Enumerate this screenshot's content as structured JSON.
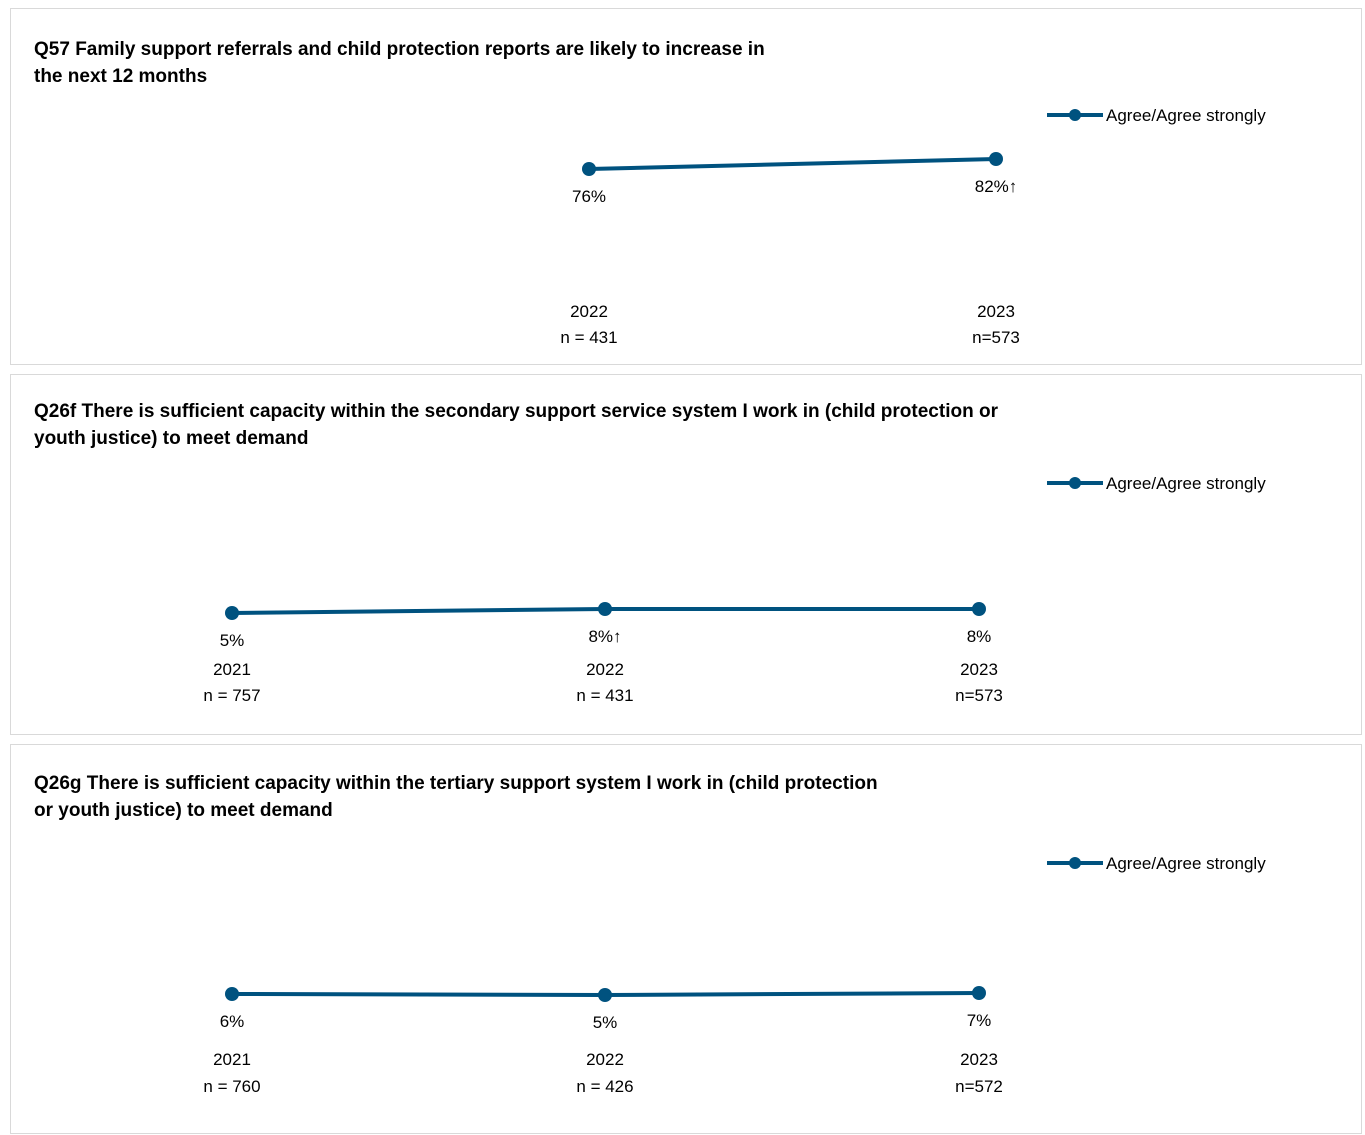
{
  "chart_data": [
    {
      "type": "line",
      "title": "Q57 Family support referrals and child protection reports are likely to increase in the next 12 months",
      "categories": [
        "2022",
        "2023"
      ],
      "sample_sizes": [
        "n = 431",
        "n=573"
      ],
      "series": [
        {
          "name": "Agree/Agree strongly",
          "values": [
            76,
            82
          ],
          "data_labels": [
            "76%",
            "82%↑"
          ]
        }
      ],
      "color": "#00527f",
      "ylim": [
        0,
        100
      ],
      "legend": "top-right",
      "grid": false
    },
    {
      "type": "line",
      "title": "Q26f There is sufficient capacity within the secondary support service system I work in (child protection or youth justice) to meet demand",
      "categories": [
        "2021",
        "2022",
        "2023"
      ],
      "sample_sizes": [
        "n = 757",
        "n = 431",
        "n=573"
      ],
      "series": [
        {
          "name": "Agree/Agree strongly",
          "values": [
            5,
            8,
            8
          ],
          "data_labels": [
            "5%",
            "8%↑",
            "8%"
          ]
        }
      ],
      "color": "#00527f",
      "ylim": [
        0,
        100
      ],
      "legend": "top-right",
      "grid": false
    },
    {
      "type": "line",
      "title": "Q26g There is sufficient capacity within the tertiary support system I work in (child protection or youth justice) to meet demand",
      "categories": [
        "2021",
        "2022",
        "2023"
      ],
      "sample_sizes": [
        "n = 760",
        "n = 426",
        "n=572"
      ],
      "series": [
        {
          "name": "Agree/Agree strongly",
          "values": [
            6,
            5,
            7
          ],
          "data_labels": [
            "6%",
            "5%",
            "7%"
          ]
        }
      ],
      "color": "#00527f",
      "ylim": [
        0,
        100
      ],
      "legend": "top-right",
      "grid": false
    }
  ]
}
